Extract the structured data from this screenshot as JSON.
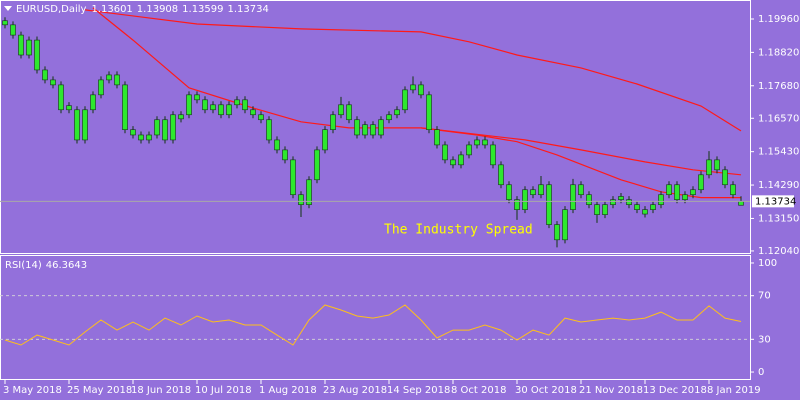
{
  "chart_data": {
    "type": "candlestick",
    "symbol": "EURUSD,Daily",
    "bull_color": "#2ee82e",
    "bear_color": "#2ee82e",
    "candles": [
      [
        1.199,
        1.2002,
        1.1964,
        1.1976
      ],
      [
        1.1976,
        1.1988,
        1.1929,
        1.1941
      ],
      [
        1.1941,
        1.1953,
        1.1861,
        1.1873
      ],
      [
        1.1873,
        1.1936,
        1.1861,
        1.1924
      ],
      [
        1.1924,
        1.1936,
        1.181,
        1.1822
      ],
      [
        1.1822,
        1.1834,
        1.1776,
        1.1788
      ],
      [
        1.1788,
        1.18,
        1.1759,
        1.1771
      ],
      [
        1.1771,
        1.1783,
        1.1674,
        1.1686
      ],
      [
        1.17,
        1.1712,
        1.1674,
        1.1686
      ],
      [
        1.1686,
        1.1698,
        1.1571,
        1.1583
      ],
      [
        1.1583,
        1.1698,
        1.1571,
        1.1686
      ],
      [
        1.1686,
        1.1749,
        1.1674,
        1.1737
      ],
      [
        1.1737,
        1.18,
        1.1725,
        1.1788
      ],
      [
        1.1788,
        1.1817,
        1.1776,
        1.1805
      ],
      [
        1.1805,
        1.1817,
        1.1759,
        1.1771
      ],
      [
        1.1771,
        1.1783,
        1.1606,
        1.1618
      ],
      [
        1.1618,
        1.163,
        1.1588,
        1.16
      ],
      [
        1.16,
        1.1612,
        1.1571,
        1.1583
      ],
      [
        1.1583,
        1.1612,
        1.1571,
        1.16
      ],
      [
        1.16,
        1.1664,
        1.1588,
        1.1652
      ],
      [
        1.1652,
        1.1664,
        1.1571,
        1.1583
      ],
      [
        1.1583,
        1.1681,
        1.1571,
        1.1669
      ],
      [
        1.1655,
        1.1681,
        1.1643,
        1.1669
      ],
      [
        1.1669,
        1.1749,
        1.1657,
        1.1737
      ],
      [
        1.1737,
        1.1749,
        1.1708,
        1.172
      ],
      [
        1.172,
        1.1732,
        1.1674,
        1.1686
      ],
      [
        1.1686,
        1.1715,
        1.1674,
        1.1703
      ],
      [
        1.1703,
        1.1715,
        1.1657,
        1.1669
      ],
      [
        1.1669,
        1.1715,
        1.1657,
        1.1703
      ],
      [
        1.1703,
        1.1732,
        1.1691,
        1.172
      ],
      [
        1.172,
        1.1732,
        1.1674,
        1.1686
      ],
      [
        1.1686,
        1.1698,
        1.1657,
        1.1669
      ],
      [
        1.1669,
        1.1681,
        1.164,
        1.1652
      ],
      [
        1.1652,
        1.1664,
        1.1571,
        1.1583
      ],
      [
        1.1583,
        1.1595,
        1.1537,
        1.1549
      ],
      [
        1.1549,
        1.1561,
        1.1503,
        1.1515
      ],
      [
        1.1515,
        1.1527,
        1.1384,
        1.1396
      ],
      [
        1.1396,
        1.1408,
        1.132,
        1.1362
      ],
      [
        1.1362,
        1.1459,
        1.135,
        1.1447
      ],
      [
        1.1447,
        1.1561,
        1.1435,
        1.1549
      ],
      [
        1.1549,
        1.163,
        1.1537,
        1.1618
      ],
      [
        1.1618,
        1.1681,
        1.1606,
        1.1669
      ],
      [
        1.1669,
        1.173,
        1.1657,
        1.1703
      ],
      [
        1.1703,
        1.1715,
        1.164,
        1.1652
      ],
      [
        1.1652,
        1.1664,
        1.1588,
        1.16
      ],
      [
        1.16,
        1.1647,
        1.1588,
        1.1635
      ],
      [
        1.1635,
        1.1647,
        1.1588,
        1.16
      ],
      [
        1.16,
        1.1664,
        1.1588,
        1.1652
      ],
      [
        1.1652,
        1.1681,
        1.164,
        1.1669
      ],
      [
        1.1669,
        1.1698,
        1.1657,
        1.1686
      ],
      [
        1.1686,
        1.1766,
        1.1674,
        1.1754
      ],
      [
        1.1754,
        1.18,
        1.1742,
        1.1771
      ],
      [
        1.1771,
        1.1783,
        1.1725,
        1.1737
      ],
      [
        1.1737,
        1.1749,
        1.1606,
        1.1618
      ],
      [
        1.1618,
        1.163,
        1.1554,
        1.1566
      ],
      [
        1.1566,
        1.1578,
        1.1503,
        1.1515
      ],
      [
        1.1515,
        1.1527,
        1.1486,
        1.1498
      ],
      [
        1.1498,
        1.1544,
        1.1486,
        1.1532
      ],
      [
        1.1532,
        1.1578,
        1.152,
        1.1566
      ],
      [
        1.1566,
        1.1595,
        1.1554,
        1.1583
      ],
      [
        1.1583,
        1.1595,
        1.1554,
        1.1566
      ],
      [
        1.1566,
        1.1578,
        1.1486,
        1.1498
      ],
      [
        1.1498,
        1.151,
        1.1418,
        1.143
      ],
      [
        1.143,
        1.1442,
        1.1367,
        1.1379
      ],
      [
        1.1379,
        1.1391,
        1.131,
        1.1345
      ],
      [
        1.1345,
        1.1425,
        1.1333,
        1.1413
      ],
      [
        1.1413,
        1.1425,
        1.1384,
        1.1396
      ],
      [
        1.1396,
        1.146,
        1.1384,
        1.143
      ],
      [
        1.143,
        1.1442,
        1.1282,
        1.1294
      ],
      [
        1.1294,
        1.1306,
        1.1216,
        1.1242
      ],
      [
        1.1242,
        1.1357,
        1.123,
        1.1345
      ],
      [
        1.1345,
        1.145,
        1.1333,
        1.143
      ],
      [
        1.143,
        1.1442,
        1.1384,
        1.1396
      ],
      [
        1.1396,
        1.1408,
        1.135,
        1.1362
      ],
      [
        1.1362,
        1.1374,
        1.13,
        1.1328
      ],
      [
        1.1328,
        1.1374,
        1.1316,
        1.1362
      ],
      [
        1.1362,
        1.1391,
        1.135,
        1.1379
      ],
      [
        1.139,
        1.1402,
        1.1367,
        1.1379
      ],
      [
        1.1379,
        1.1391,
        1.135,
        1.1362
      ],
      [
        1.1362,
        1.1374,
        1.1333,
        1.1345
      ],
      [
        1.133,
        1.1357,
        1.1318,
        1.1345
      ],
      [
        1.1345,
        1.1374,
        1.1333,
        1.1362
      ],
      [
        1.1362,
        1.1408,
        1.135,
        1.1396
      ],
      [
        1.1396,
        1.1442,
        1.1384,
        1.143
      ],
      [
        1.143,
        1.1442,
        1.1367,
        1.1379
      ],
      [
        1.1379,
        1.1408,
        1.1367,
        1.1396
      ],
      [
        1.1396,
        1.1425,
        1.1384,
        1.1413
      ],
      [
        1.1413,
        1.1476,
        1.1401,
        1.1464
      ],
      [
        1.1464,
        1.1545,
        1.1452,
        1.1515
      ],
      [
        1.1515,
        1.1527,
        1.1469,
        1.1481
      ],
      [
        1.1481,
        1.1493,
        1.1418,
        1.143
      ],
      [
        1.143,
        1.1442,
        1.1384,
        1.1396
      ],
      [
        1.13601,
        1.13908,
        1.13599,
        1.13734
      ]
    ],
    "xlim": [
      -0.625,
      93.125
    ],
    "xticks": [
      {
        "value": 0,
        "label": "3 May 2018"
      },
      {
        "value": 8,
        "label": "25 May 2018"
      },
      {
        "value": 16,
        "label": "18 Jun 2018"
      },
      {
        "value": 24,
        "label": "10 Jul 2018"
      },
      {
        "value": 32,
        "label": "1 Aug 2018"
      },
      {
        "value": 40,
        "label": "23 Aug 2018"
      },
      {
        "value": 48,
        "label": "14 Sep 2018"
      },
      {
        "value": 56,
        "label": "8 Oct 2018"
      },
      {
        "value": 64,
        "label": "30 Oct 2018"
      },
      {
        "value": 72,
        "label": "21 Nov 2018"
      },
      {
        "value": 80,
        "label": "13 Dec 2018"
      },
      {
        "value": 88,
        "label": "8 Jan 2019"
      }
    ],
    "ylim": [
      1.1197,
      1.2054
    ],
    "yticks": [
      {
        "value": 1.1996,
        "label": "1.19960"
      },
      {
        "value": 1.1882,
        "label": "1.18820"
      },
      {
        "value": 1.1768,
        "label": "1.17680"
      },
      {
        "value": 1.1657,
        "label": "1.16570"
      },
      {
        "value": 1.1543,
        "label": "1.15430"
      },
      {
        "value": 1.1429,
        "label": "1.14290"
      },
      {
        "value": 1.1315,
        "label": "1.13150"
      },
      {
        "value": 1.1204,
        "label": "1.12040"
      }
    ],
    "lines": [
      {
        "color": "#ff1a1a",
        "x": [
          10,
          24,
          37,
          52,
          58,
          64,
          72,
          79,
          87,
          92
        ],
        "values": [
          1.2027,
          1.1979,
          1.1962,
          1.1952,
          1.1918,
          1.1873,
          1.1829,
          1.1774,
          1.1699,
          1.1614
        ]
      },
      {
        "color": "#ff1a1a",
        "x": [
          11,
          16,
          23,
          31,
          37,
          43,
          52,
          59,
          64,
          69,
          77,
          82,
          87,
          92
        ],
        "values": [
          1.2034,
          1.1924,
          1.1761,
          1.1692,
          1.1645,
          1.1624,
          1.1624,
          1.16,
          1.1577,
          1.1532,
          1.1447,
          1.1406,
          1.1386,
          1.1386
        ]
      },
      {
        "color": "#ff1a1a",
        "x": [
          52,
          65,
          72,
          80,
          86,
          92
        ],
        "values": [
          1.1624,
          1.1583,
          1.1549,
          1.1508,
          1.1481,
          1.1464
        ]
      }
    ],
    "last_price_color": "#a8a8a8",
    "watermark": "The Industry Spread",
    "indicator": {
      "type": "line",
      "title": "RSI(14)",
      "color": "#ffbf1a",
      "x": [
        0,
        2,
        4,
        6,
        8,
        10,
        12,
        14,
        16,
        18,
        20,
        22,
        24,
        26,
        28,
        30,
        32,
        34,
        36,
        38,
        40,
        42,
        44,
        46,
        48,
        50,
        52,
        54,
        56,
        58,
        60,
        62,
        64,
        66,
        68,
        70,
        72,
        74,
        76,
        78,
        80,
        82,
        84,
        86,
        88,
        90,
        92
      ],
      "values": [
        29.4,
        24.8,
        33.9,
        29.4,
        24.8,
        36.7,
        47.7,
        38.5,
        45.9,
        38.5,
        49.5,
        43.1,
        51.4,
        45.9,
        47.7,
        43.1,
        43.1,
        33.9,
        24.8,
        47.7,
        61.5,
        56.9,
        51.4,
        49.5,
        52.3,
        61.5,
        47.7,
        31.2,
        38.5,
        38.5,
        43.1,
        38.5,
        29.4,
        38.5,
        33.9,
        49.5,
        45.9,
        47.7,
        49.5,
        47.7,
        49.5,
        55.0,
        47.7,
        47.7,
        60.6,
        49.5,
        46.3643
      ],
      "ylim": [
        -7.3,
        106.4
      ],
      "yticks": [
        100,
        70,
        30,
        0
      ],
      "levels": [
        70,
        30
      ]
    }
  }
}
